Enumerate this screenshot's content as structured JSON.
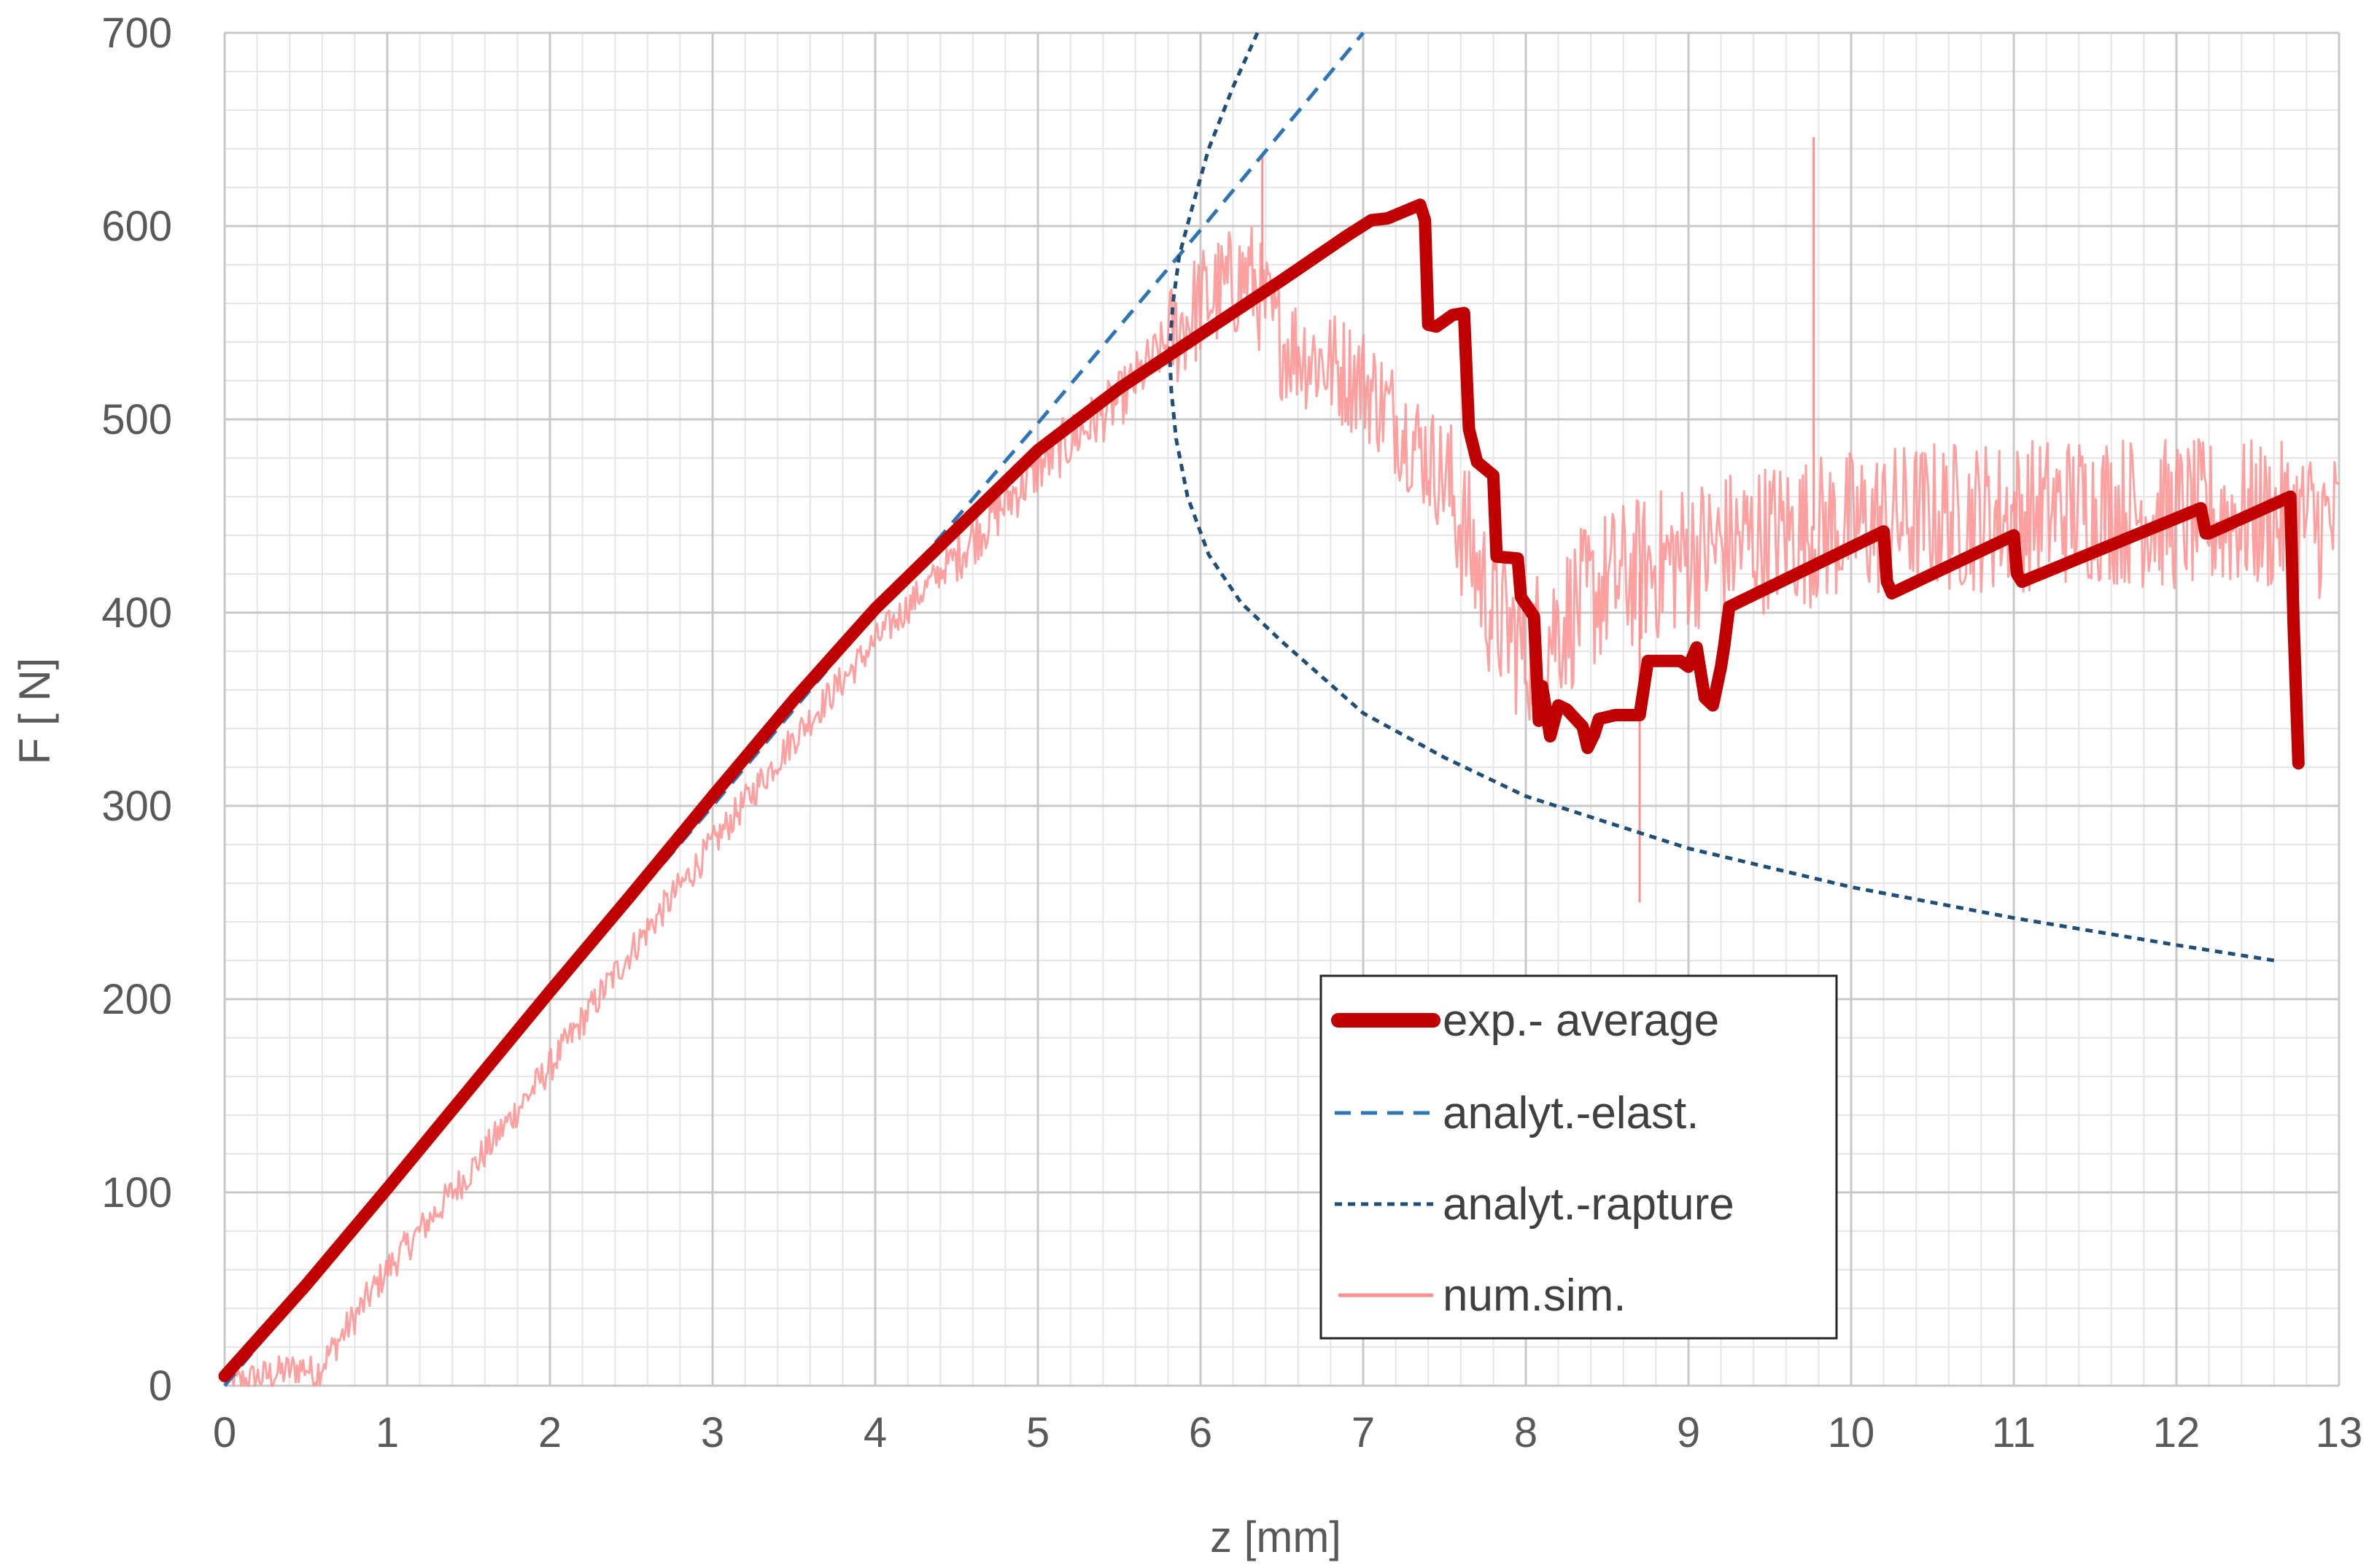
{
  "chart_data": {
    "type": "line",
    "xlabel": "z [mm]",
    "ylabel": "F [ N]",
    "xlim": [
      0,
      13
    ],
    "ylim": [
      0,
      700
    ],
    "x_ticks": [
      0,
      1,
      2,
      3,
      4,
      5,
      6,
      7,
      8,
      9,
      10,
      11,
      12,
      13
    ],
    "y_ticks": [
      0,
      100,
      200,
      300,
      400,
      500,
      600,
      700
    ],
    "grid": true,
    "minor_grid": true,
    "legend_position": "lower-right",
    "series": [
      {
        "name": "exp.- average",
        "color": "#c00000",
        "style": "solid-thick",
        "x": [
          0,
          0.5,
          1,
          1.5,
          2,
          2.5,
          3,
          3.5,
          4,
          4.5,
          5,
          5.5,
          6,
          6.5,
          6.9,
          7.05,
          7.15,
          7.35,
          7.38,
          7.4,
          7.45,
          7.55,
          7.62,
          7.65,
          7.7,
          7.8,
          7.82,
          7.95,
          7.97,
          8.05,
          8.08,
          8.1,
          8.15,
          8.2,
          8.25,
          8.35,
          8.38,
          8.42,
          8.45,
          8.55,
          8.7,
          8.75,
          8.95,
          9.0,
          9.05,
          9.1,
          9.15,
          9.2,
          9.22,
          9.25,
          10.2,
          10.22,
          10.25,
          11.0,
          11.02,
          11.05,
          12.15,
          12.18,
          12.2,
          12.7,
          12.72,
          12.75
        ],
        "values": [
          5,
          52,
          102,
          153,
          204,
          254,
          305,
          355,
          402,
          443,
          484,
          516,
          544,
          572,
          595,
          603,
          604,
          611,
          603,
          549,
          548,
          554,
          555,
          495,
          478,
          471,
          429,
          428,
          408,
          398,
          344,
          362,
          336,
          352,
          350,
          341,
          330,
          337,
          345,
          347,
          347,
          375,
          375,
          372,
          382,
          356,
          352,
          372,
          383,
          403,
          442,
          416,
          410,
          440,
          420,
          416,
          454,
          441,
          441,
          460,
          395,
          322
        ]
      },
      {
        "name": "analyt.-elast.",
        "color": "#2e75b6",
        "style": "dashed",
        "x": [
          0,
          1,
          2,
          3,
          4,
          5,
          6,
          7
        ],
        "values": [
          0,
          101,
          202,
          300,
          400,
          498,
          598,
          700
        ]
      },
      {
        "name": "analyt.-rapture",
        "color": "#1f4e79",
        "style": "dotted",
        "x": [
          6.35,
          6.2,
          6.05,
          5.95,
          5.87,
          5.83,
          5.81,
          5.82,
          5.85,
          5.92,
          6.05,
          6.25,
          6.5,
          7.0,
          7.5,
          8.0,
          9.0,
          10.0,
          11.0,
          12.0,
          12.6
        ],
        "values": [
          700,
          672,
          640,
          610,
          585,
          560,
          535,
          515,
          490,
          460,
          430,
          405,
          385,
          348,
          325,
          305,
          278,
          258,
          242,
          228,
          220
        ]
      },
      {
        "name": "num.sim.",
        "color": "#ff8f8f",
        "style": "solid-thin-noisy",
        "x": [
          0,
          0.25,
          0.5,
          0.55,
          1,
          1.5,
          2,
          2.5,
          3,
          3.5,
          4,
          4.5,
          5,
          5.5,
          5.8,
          6,
          6.3,
          6.5,
          7,
          7.5,
          7.8,
          8,
          8.5,
          9,
          9.5,
          10,
          10.5,
          11,
          11.5,
          12,
          12.5,
          13
        ],
        "values": [
          0,
          5,
          10,
          5,
          60,
          110,
          165,
          225,
          280,
          335,
          385,
          430,
          475,
          510,
          540,
          560,
          575,
          540,
          520,
          470,
          400,
          380,
          415,
          430,
          440,
          445,
          450,
          450,
          455,
          450,
          450,
          445
        ]
      }
    ],
    "annotation": {
      "num_sim_spikes": [
        {
          "x": 6.38,
          "y": 636
        },
        {
          "x": 9.77,
          "y": 646
        },
        {
          "x": 8.7,
          "y": 250
        }
      ]
    }
  }
}
